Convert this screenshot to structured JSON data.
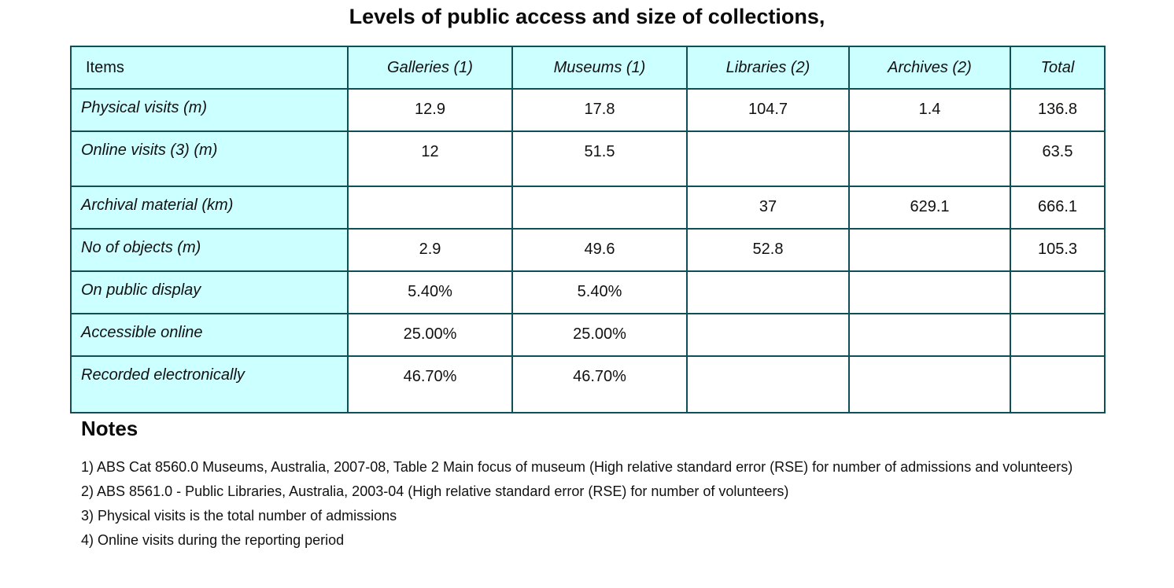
{
  "title": "Levels of public access and size of collections,",
  "table": {
    "headers": [
      "Items",
      "Galleries (1)",
      "Museums (1)",
      "Libraries (2)",
      "Archives (2)",
      "Total"
    ],
    "rows": [
      [
        "Physical visits (m)",
        "12.9",
        "17.8",
        "104.7",
        "1.4",
        "136.8"
      ],
      [
        "Online visits (3) (m)",
        "12",
        "51.5",
        "",
        "",
        "63.5"
      ],
      [
        "Archival material (km)",
        "",
        "",
        "37",
        "629.1",
        "666.1"
      ],
      [
        "No of objects (m)",
        "2.9",
        "49.6",
        "52.8",
        "",
        "105.3"
      ],
      [
        "On public display",
        "5.40%",
        "5.40%",
        "",
        "",
        ""
      ],
      [
        "Accessible online",
        "25.00%",
        "25.00%",
        "",
        "",
        ""
      ],
      [
        "Recorded electronically",
        "46.70%",
        "46.70%",
        "",
        "",
        ""
      ]
    ]
  },
  "notes": {
    "heading": "Notes",
    "items": [
      "1) ABS Cat 8560.0 Museums, Australia, 2007-08, Table 2 Main focus of museum (High relative standard error (RSE) for number of admissions and volunteers)",
      "2) ABS 8561.0 - Public Libraries, Australia, 2003-04 (High relative standard error (RSE) for number of volunteers)",
      "3) Physical visits is the total number of admissions",
      "4) Online visits during the reporting period"
    ]
  },
  "colors": {
    "header_fill": "#ccffff",
    "border": "#0f4f56"
  }
}
